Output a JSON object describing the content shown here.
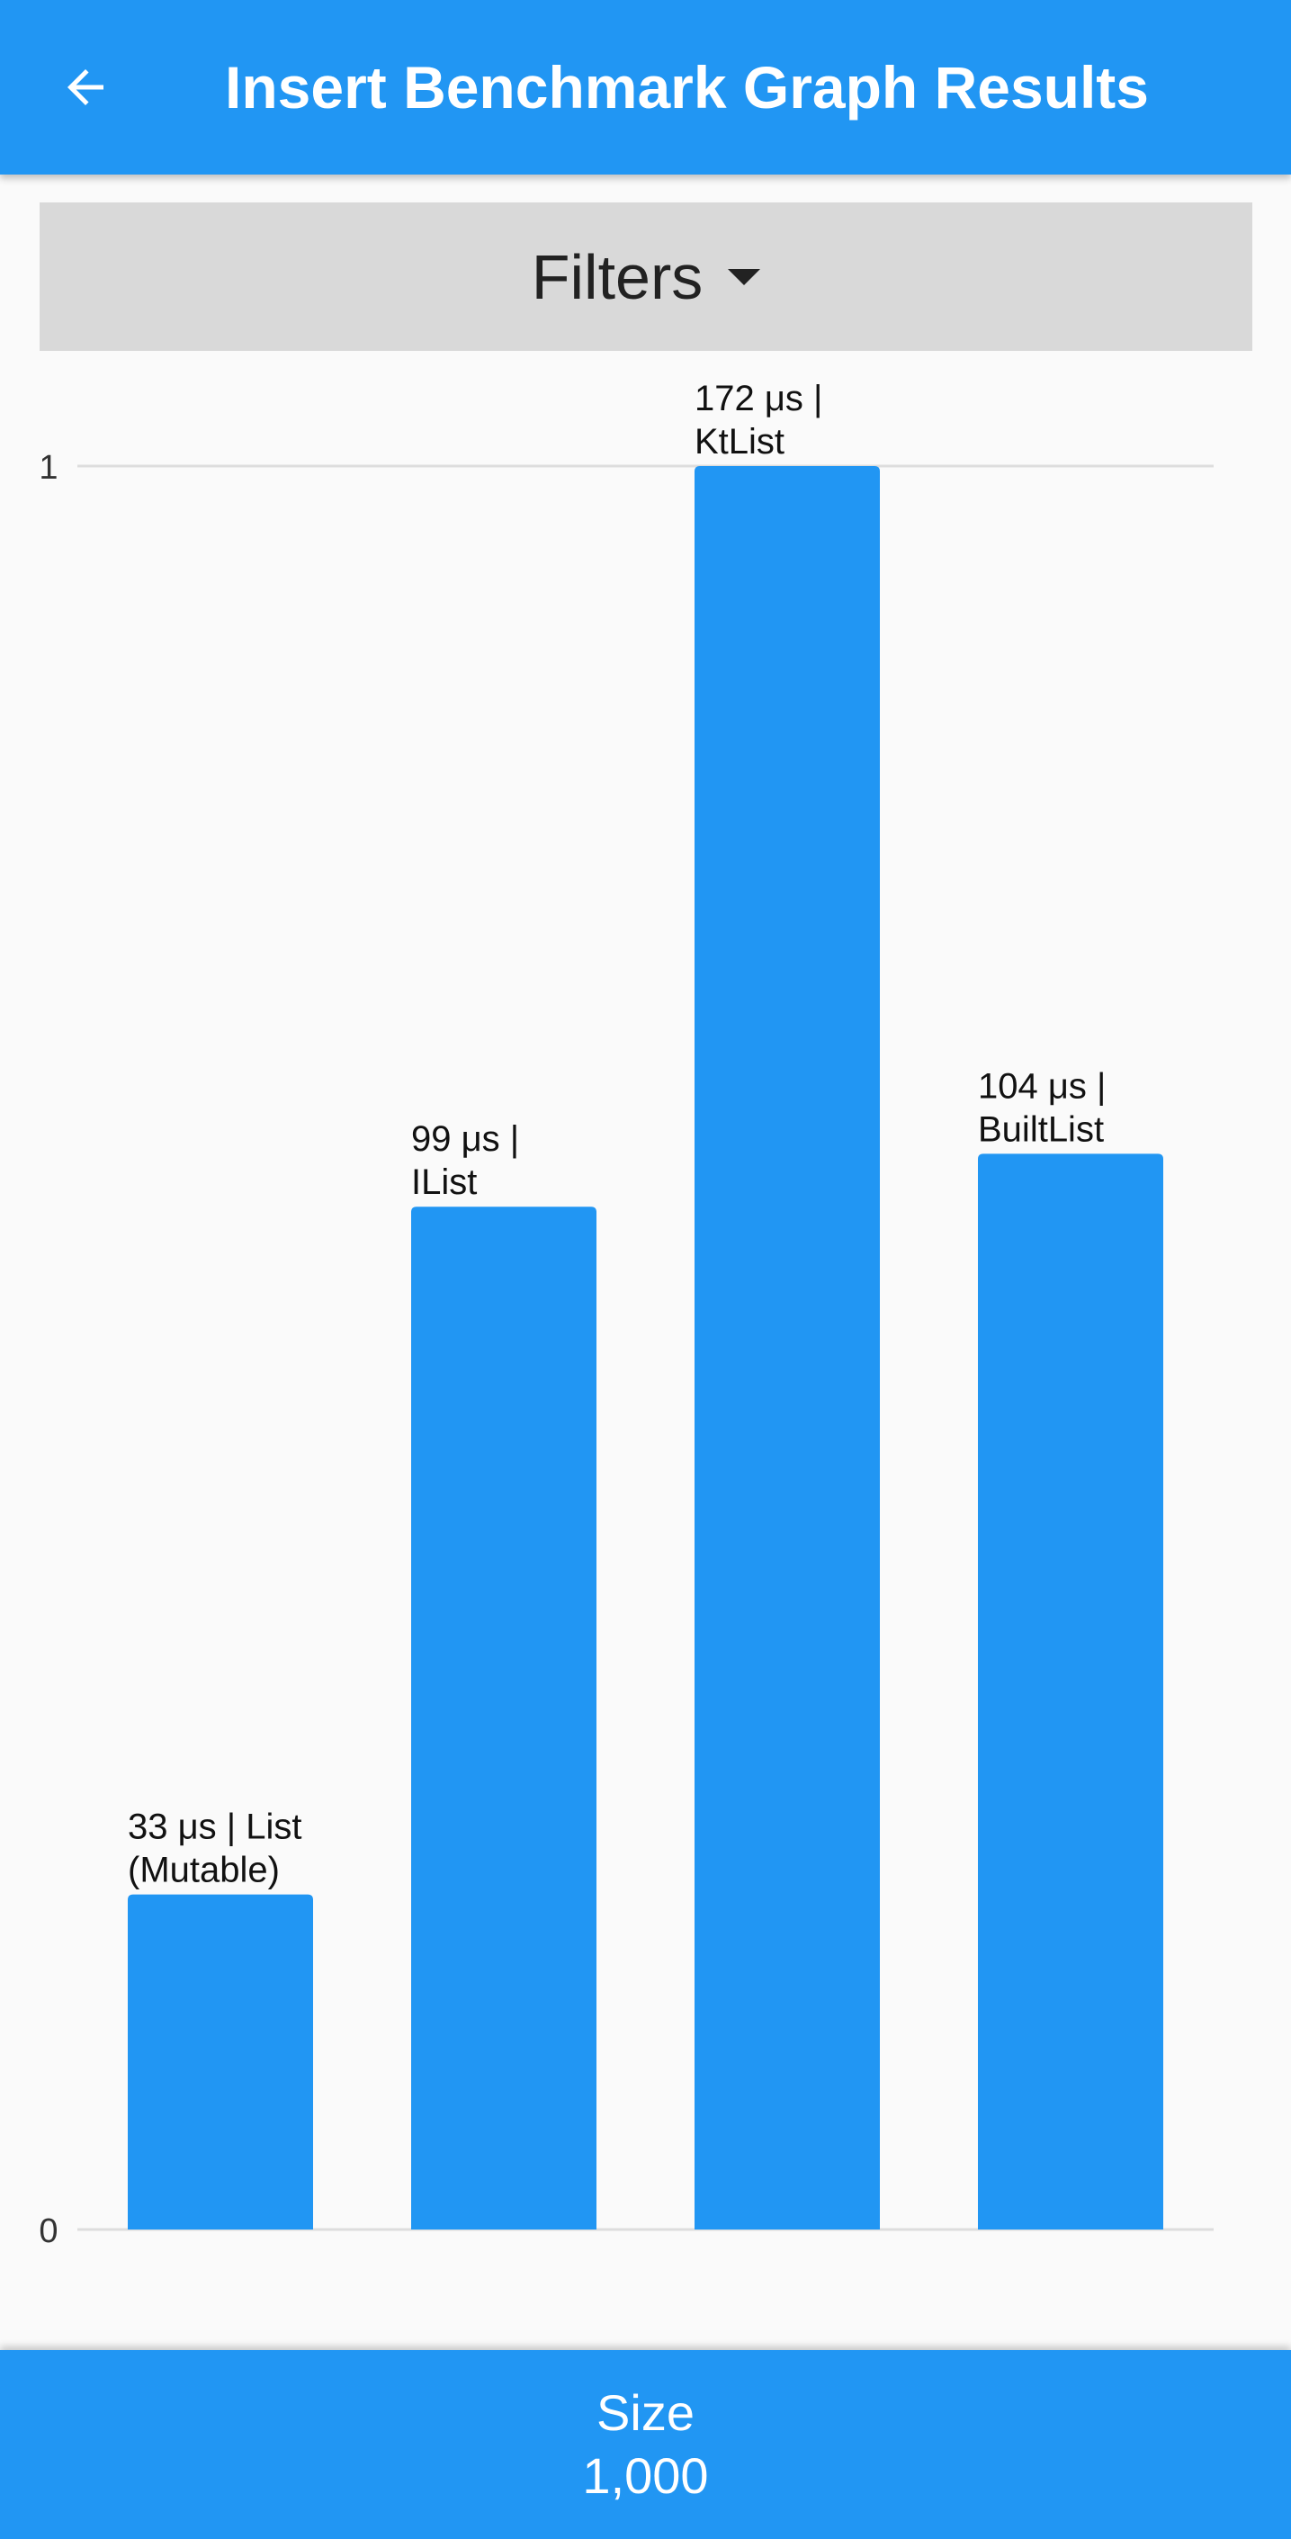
{
  "app_bar": {
    "title": "Insert Benchmark Graph Results",
    "back_icon": "arrow-back-icon"
  },
  "filters": {
    "label": "Filters",
    "icon": "dropdown-caret-icon"
  },
  "chart_data": {
    "type": "bar",
    "categories": [
      "List (Mutable)",
      "IList",
      "KtList",
      "BuiltList"
    ],
    "values": [
      33,
      99,
      172,
      104
    ],
    "normalized_values": [
      0.19,
      0.58,
      1.0,
      0.61
    ],
    "unit": "μs",
    "bar_labels": [
      "33 μs | List (Mutable)",
      "99 μs | IList",
      "172 μs | KtList",
      "104 μs | BuiltList"
    ],
    "y_ticks": [
      "0",
      "1"
    ],
    "ylim": [
      0,
      1
    ],
    "grid": true,
    "bar_color": "#2196f3"
  },
  "bottom_bar": {
    "label": "Size",
    "value": "1,000"
  },
  "colors": {
    "primary": "#2196f3",
    "background": "#fafafa",
    "filters_bg": "#d9d9d9"
  }
}
